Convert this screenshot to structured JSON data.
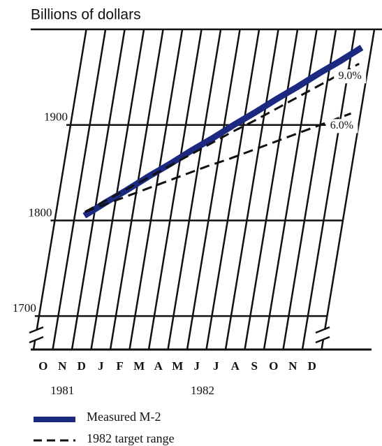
{
  "chart_data": {
    "type": "line",
    "title": "Billions of dollars",
    "categories": [
      "O",
      "N",
      "D",
      "J",
      "F",
      "M",
      "A",
      "M",
      "J",
      "J",
      "A",
      "S",
      "O",
      "N",
      "D"
    ],
    "years": [
      "1981",
      "1982"
    ],
    "ylim": [
      1665,
      2000
    ],
    "yticks": [
      1700,
      1800,
      1900
    ],
    "grid": true,
    "series": [
      {
        "name": "Measured M-2",
        "color": "#1b2a80",
        "style": "solid",
        "values": [
          null,
          1805,
          1819,
          1832,
          1846,
          1859,
          1873,
          1886,
          1900,
          1913,
          1927,
          1940,
          1954,
          1967,
          1981
        ]
      },
      {
        "name": "9.0%",
        "color": "#111111",
        "style": "dashed",
        "values": [
          null,
          1809,
          1821,
          1833,
          1845,
          1857,
          1869,
          1881,
          1893,
          1904,
          1916,
          1928,
          1940,
          1952,
          1964
        ]
      },
      {
        "name": "6.0%",
        "color": "#111111",
        "style": "dashed",
        "values": [
          null,
          1809,
          1817,
          1825,
          1833,
          1841,
          1849,
          1857,
          1864,
          1872,
          1880,
          1888,
          1896,
          1904,
          1912
        ]
      }
    ],
    "target_legend": "1982 target range"
  }
}
